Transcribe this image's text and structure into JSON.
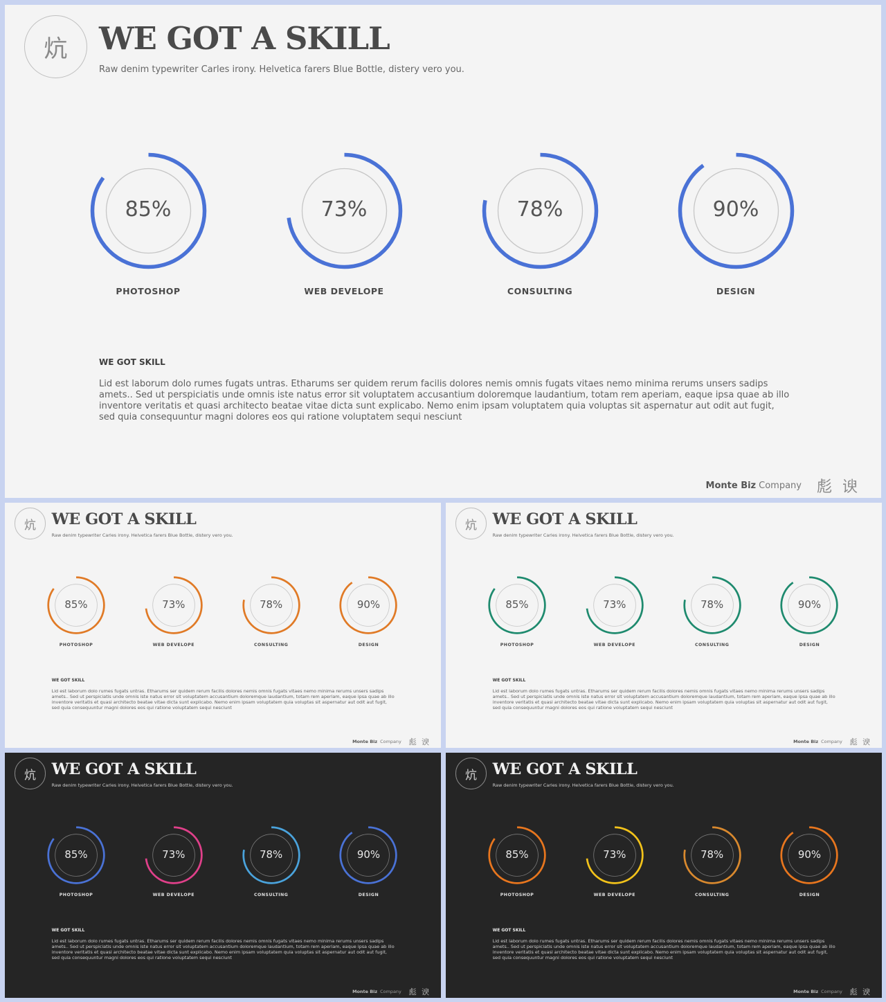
{
  "theme_colors": {
    "slide_light_bg": "#f4f4f4",
    "slide_dark_bg": "#252525",
    "page_bg": "#c8d3f0",
    "inner_ring_light": "#c6c6c6",
    "inner_ring_dark": "#7a7a7a"
  },
  "slides": [
    {
      "variant": "light",
      "logo_glyph": "炕",
      "title": "WE GOT A SKILL",
      "subtitle": "Raw denim typewriter Carles irony. Helvetica farers Blue Bottle, distery vero you.",
      "skills": [
        {
          "label": "PHOTOSHOP",
          "percent_text": "85%",
          "value": 85,
          "color": "#4a72d6"
        },
        {
          "label": "WEB DEVELOPE",
          "percent_text": "73%",
          "value": 73,
          "color": "#4a72d6"
        },
        {
          "label": "CONSULTING",
          "percent_text": "78%",
          "value": 78,
          "color": "#4a72d6"
        },
        {
          "label": "DESIGN",
          "percent_text": "90%",
          "value": 90,
          "color": "#4a72d6"
        }
      ],
      "body_title": "WE GOT SKILL",
      "body_text": "Lid est laborum dolo rumes fugats untras. Etharums ser quidem rerum facilis dolores nemis omnis fugats vitaes nemo minima rerums unsers sadips amets.. Sed ut perspiciatis unde omnis iste natus error sit voluptatem accusantium doloremque laudantium, totam rem aperiam, eaque ipsa quae ab illo inventore veritatis et quasi architecto beatae vitae dicta sunt explicabo. Nemo enim ipsam voluptatem quia voluptas sit aspernatur aut odit aut fugit, sed quia consequuntur magni dolores eos qui ratione voluptatem sequi nesciunt",
      "footer_brand": "Monte Biz",
      "footer_company": "Company",
      "footer_seal": "彪 谀"
    },
    {
      "variant": "light",
      "logo_glyph": "炕",
      "title": "WE GOT A SKILL",
      "subtitle": "Raw denim typewriter Carles irony. Helvetica farers Blue Bottle, distery vero you.",
      "skills": [
        {
          "label": "PHOTOSHOP",
          "percent_text": "85%",
          "value": 85,
          "color": "#e07a26"
        },
        {
          "label": "WEB DEVELOPE",
          "percent_text": "73%",
          "value": 73,
          "color": "#e07a26"
        },
        {
          "label": "CONSULTING",
          "percent_text": "78%",
          "value": 78,
          "color": "#e07a26"
        },
        {
          "label": "DESIGN",
          "percent_text": "90%",
          "value": 90,
          "color": "#e07a26"
        }
      ],
      "body_title": "WE GOT SKILL",
      "body_text": "Lid est laborum dolo rumes fugats untras. Etharums ser quidem rerum facilis dolores nemis omnis fugats vitaes nemo minima rerums unsers sadips amets.. Sed ut perspiciatis unde omnis iste natus error sit voluptatem accusantium doloremque laudantium, totam rem aperiam, eaque ipsa quae ab illo inventore veritatis et quasi architecto beatae vitae dicta sunt explicabo. Nemo enim ipsam voluptatem quia voluptas sit aspernatur aut odit aut fugit, sed quia consequuntur magni dolores eos qui ratione voluptatem sequi nesciunt",
      "footer_brand": "Monte Biz",
      "footer_company": "Company",
      "footer_seal": "彪 谀"
    },
    {
      "variant": "light",
      "logo_glyph": "炕",
      "title": "WE GOT A SKILL",
      "subtitle": "Raw denim typewriter Carles irony. Helvetica farers Blue Bottle, distery vero you.",
      "skills": [
        {
          "label": "PHOTOSHOP",
          "percent_text": "85%",
          "value": 85,
          "color": "#1e8a6e"
        },
        {
          "label": "WEB DEVELOPE",
          "percent_text": "73%",
          "value": 73,
          "color": "#1e8a6e"
        },
        {
          "label": "CONSULTING",
          "percent_text": "78%",
          "value": 78,
          "color": "#1e8a6e"
        },
        {
          "label": "DESIGN",
          "percent_text": "90%",
          "value": 90,
          "color": "#1e8a6e"
        }
      ],
      "body_title": "WE GOT SKILL",
      "body_text": "Lid est laborum dolo rumes fugats untras. Etharums ser quidem rerum facilis dolores nemis omnis fugats vitaes nemo minima rerums unsers sadips amets.. Sed ut perspiciatis unde omnis iste natus error sit voluptatem accusantium doloremque laudantium, totam rem aperiam, eaque ipsa quae ab illo inventore veritatis et quasi architecto beatae vitae dicta sunt explicabo. Nemo enim ipsam voluptatem quia voluptas sit aspernatur aut odit aut fugit, sed quia consequuntur magni dolores eos qui ratione voluptatem sequi nesciunt",
      "footer_brand": "Monte Biz",
      "footer_company": "Company",
      "footer_seal": "彪 谀"
    },
    {
      "variant": "dark",
      "logo_glyph": "炕",
      "title": "WE GOT A SKILL",
      "subtitle": "Raw denim typewriter Carles irony. Helvetica farers Blue Bottle, distery vero you.",
      "skills": [
        {
          "label": "PHOTOSHOP",
          "percent_text": "85%",
          "value": 85,
          "color": "#4a72d6"
        },
        {
          "label": "WEB DEVELOPE",
          "percent_text": "73%",
          "value": 73,
          "color": "#e0408a"
        },
        {
          "label": "CONSULTING",
          "percent_text": "78%",
          "value": 78,
          "color": "#4aa3dc"
        },
        {
          "label": "DESIGN",
          "percent_text": "90%",
          "value": 90,
          "color": "#4a72d6"
        }
      ],
      "body_title": "WE GOT SKILL",
      "body_text": "Lid est laborum dolo rumes fugats untras. Etharums ser quidem rerum facilis dolores nemis omnis fugats vitaes nemo minima rerums unsers sadips amets.. Sed ut perspiciatis unde omnis iste natus error sit voluptatem accusantium doloremque laudantium, totam rem aperiam, eaque ipsa quae ab illo inventore veritatis et quasi architecto beatae vitae dicta sunt explicabo. Nemo enim ipsam voluptatem quia voluptas sit aspernatur aut odit aut fugit, sed quia consequuntur magni dolores eos qui ratione voluptatem sequi nesciunt",
      "footer_brand": "Monte Biz",
      "footer_company": "Company",
      "footer_seal": "彪 谀"
    },
    {
      "variant": "dark",
      "logo_glyph": "炕",
      "title": "WE GOT A SKILL",
      "subtitle": "Raw denim typewriter Carles irony. Helvetica farers Blue Bottle, distery vero you.",
      "skills": [
        {
          "label": "PHOTOSHOP",
          "percent_text": "85%",
          "value": 85,
          "color": "#e8761e"
        },
        {
          "label": "WEB DEVELOPE",
          "percent_text": "73%",
          "value": 73,
          "color": "#f2c21a"
        },
        {
          "label": "CONSULTING",
          "percent_text": "78%",
          "value": 78,
          "color": "#d9892e"
        },
        {
          "label": "DESIGN",
          "percent_text": "90%",
          "value": 90,
          "color": "#e8761e"
        }
      ],
      "body_title": "WE GOT SKILL",
      "body_text": "Lid est laborum dolo rumes fugats untras. Etharums ser quidem rerum facilis dolores nemis omnis fugats vitaes nemo minima rerums unsers sadips amets.. Sed ut perspiciatis unde omnis iste natus error sit voluptatem accusantium doloremque laudantium, totam rem aperiam, eaque ipsa quae ab illo inventore veritatis et quasi architecto beatae vitae dicta sunt explicabo. Nemo enim ipsam voluptatem quia voluptas sit aspernatur aut odit aut fugit, sed quia consequuntur magni dolores eos qui ratione voluptatem sequi nesciunt",
      "footer_brand": "Monte Biz",
      "footer_company": "Company",
      "footer_seal": "彪 谀"
    }
  ]
}
